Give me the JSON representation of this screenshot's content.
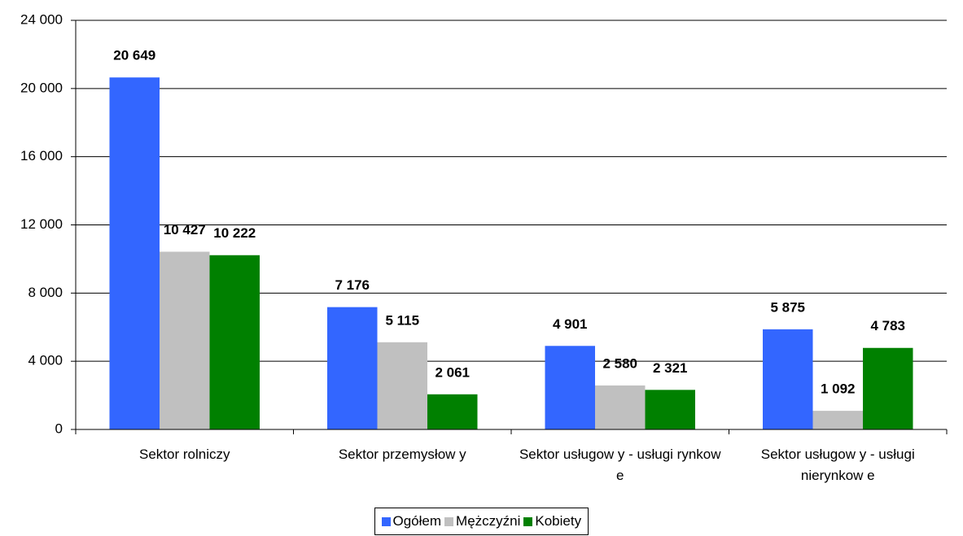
{
  "chart_data": {
    "type": "bar",
    "categories": [
      "Sektor rolniczy",
      "Sektor przemysłow y",
      "Sektor usługow y - usługi rynkow e",
      "Sektor usługow y - usługi nierynkow e"
    ],
    "series": [
      {
        "name": "Ogółem",
        "color": "#3366ff",
        "values": [
          20649,
          7176,
          4901,
          5875
        ],
        "value_labels": [
          "20 649",
          "7 176",
          "4 901",
          "5 875"
        ]
      },
      {
        "name": "Mężczyźni",
        "color": "#c0c0c0",
        "values": [
          10427,
          5115,
          2580,
          1092
        ],
        "value_labels": [
          "10 427",
          "5 115",
          "2 580",
          "1 092"
        ]
      },
      {
        "name": "Kobiety",
        "color": "#008000",
        "values": [
          10222,
          2061,
          2321,
          4783
        ],
        "value_labels": [
          "10 222",
          "2 061",
          "2 321",
          "4 783"
        ]
      }
    ],
    "ylim": [
      0,
      24000
    ],
    "yticks": [
      0,
      {
        "value": 4000,
        "label": "4 000"
      },
      {
        "value": 8000,
        "label": "8 000"
      },
      {
        "value": 12000,
        "label": "12 000"
      },
      {
        "value": 16000,
        "label": "16 000"
      },
      {
        "value": 20000,
        "label": "20 000"
      },
      {
        "value": 24000,
        "label": "24 000"
      }
    ],
    "grid": true,
    "legend": "bottom"
  }
}
